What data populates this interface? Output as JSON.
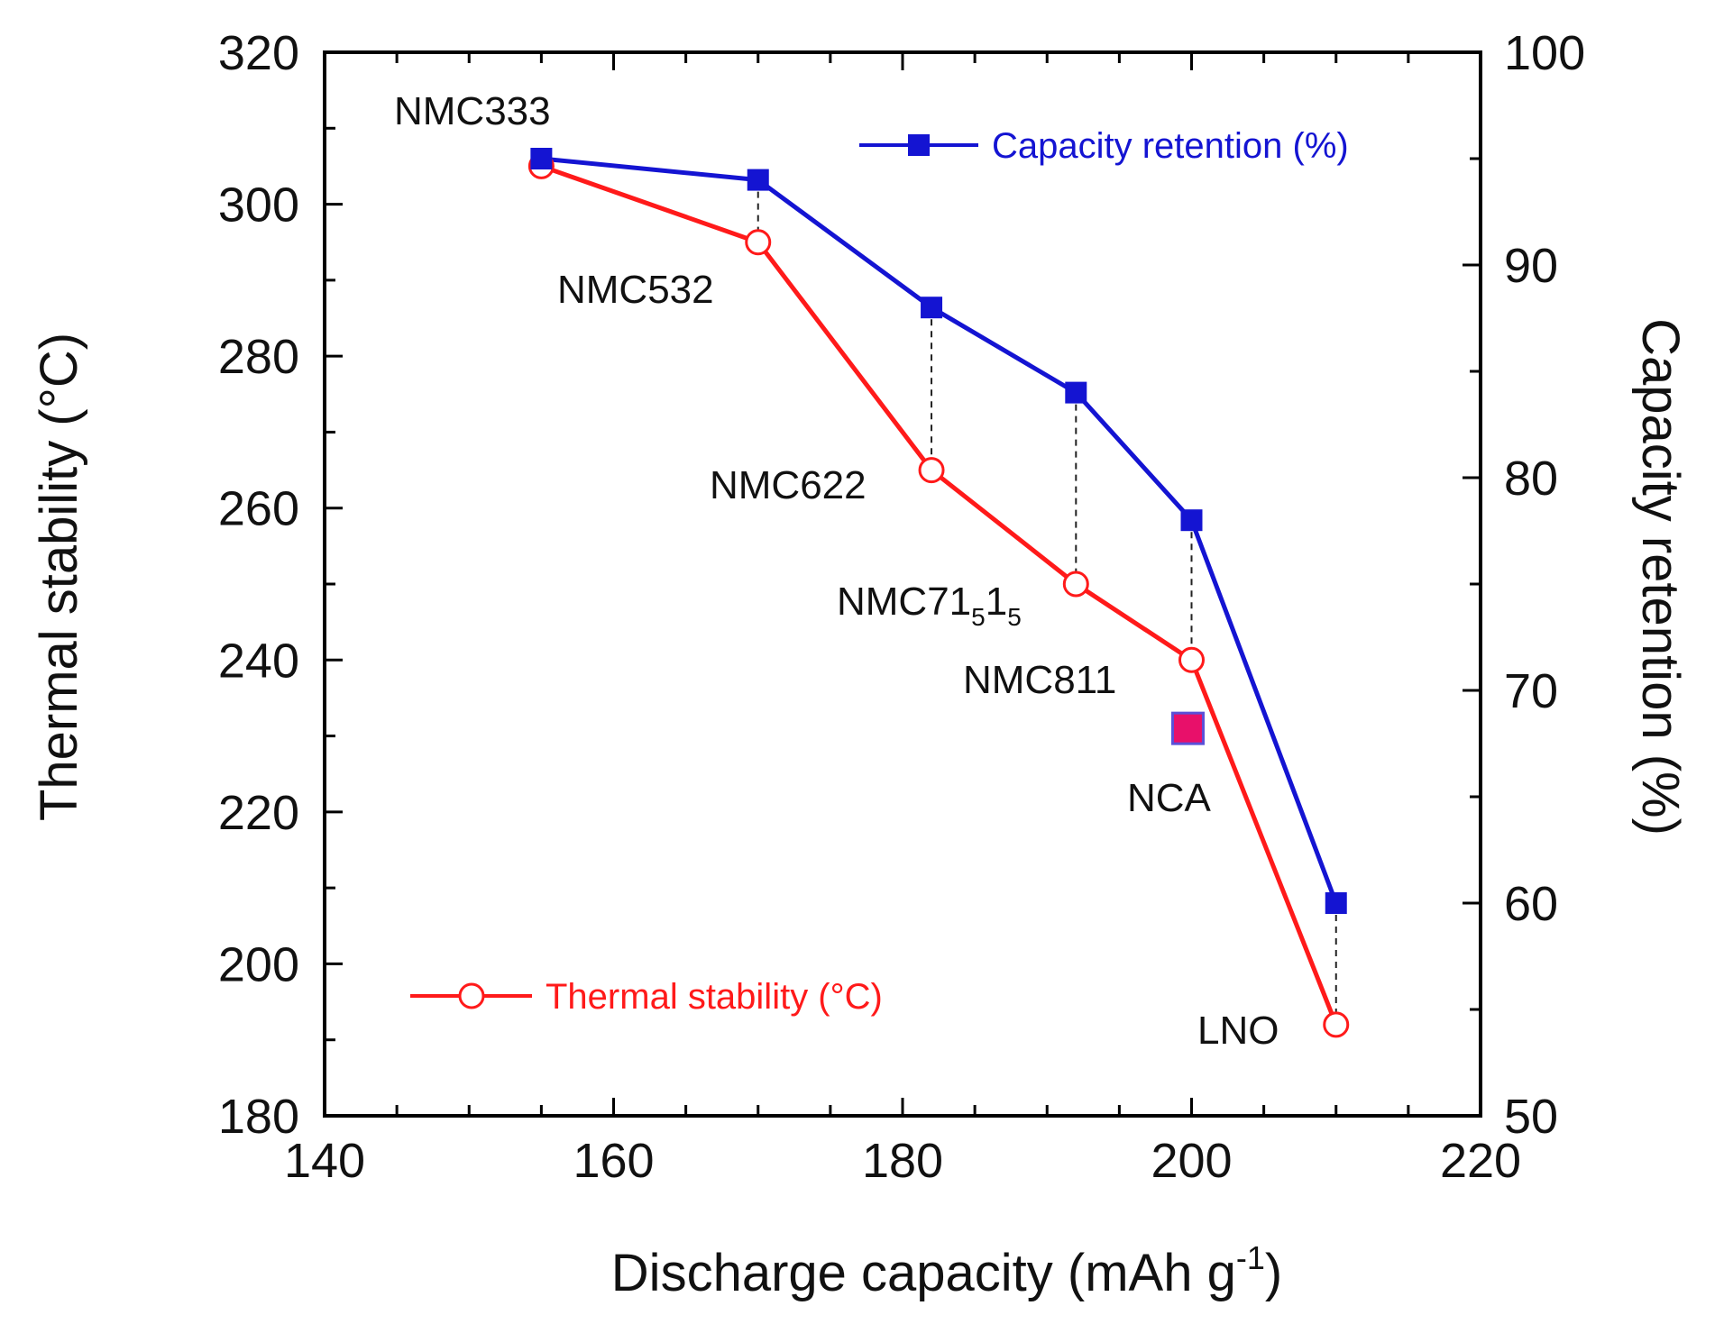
{
  "chart_data": {
    "type": "line",
    "xlabel": "Discharge capacity (mAh g",
    "xlabel_sup": "-1",
    "xlabel_close": ")",
    "ylabel_left": "Thermal stability (°C)",
    "ylabel_right": "Capacity retention (%)",
    "xlim": [
      140,
      220
    ],
    "ylim_left": [
      180,
      320
    ],
    "ylim_right": [
      50,
      100
    ],
    "x_ticks": [
      "140",
      "160",
      "180",
      "200",
      "220"
    ],
    "y_left_ticks": [
      "180",
      "200",
      "220",
      "240",
      "260",
      "280",
      "300",
      "320"
    ],
    "y_right_ticks": [
      "50",
      "60",
      "70",
      "80",
      "90",
      "100"
    ],
    "series": [
      {
        "name": "Thermal stability (°C)",
        "axis": "left",
        "color": "#ff1a1a",
        "marker": "open-circle",
        "x": [
          155,
          170,
          182,
          192,
          200,
          210
        ],
        "values": [
          305,
          295,
          265,
          250,
          240,
          192
        ]
      },
      {
        "name": "Capacity retention (%)",
        "axis": "right",
        "color": "#1414d2",
        "marker": "filled-square",
        "x": [
          155,
          170,
          182,
          192,
          200,
          210
        ],
        "values": [
          95,
          94,
          88,
          84,
          78,
          60
        ]
      }
    ],
    "extra_points": [
      {
        "name": "NCA",
        "x": 200,
        "value": 231,
        "axis": "left",
        "color": "#e8106a",
        "border": "#5a50d8"
      }
    ],
    "point_labels": [
      {
        "id": "nmc333",
        "text": "NMC333"
      },
      {
        "id": "nmc532",
        "text": "NMC532"
      },
      {
        "id": "nmc622",
        "text": "NMC622"
      },
      {
        "id": "nmc71515",
        "main": "NMC71",
        "sub1": "5",
        "mid": "1",
        "sub2": "5"
      },
      {
        "id": "nmc811",
        "text": "NMC811"
      },
      {
        "id": "nca",
        "text": "NCA"
      },
      {
        "id": "lno",
        "text": "LNO"
      }
    ],
    "legend": {
      "capacity": "Capacity retention (%)",
      "thermal": "Thermal stability (°C)"
    }
  }
}
